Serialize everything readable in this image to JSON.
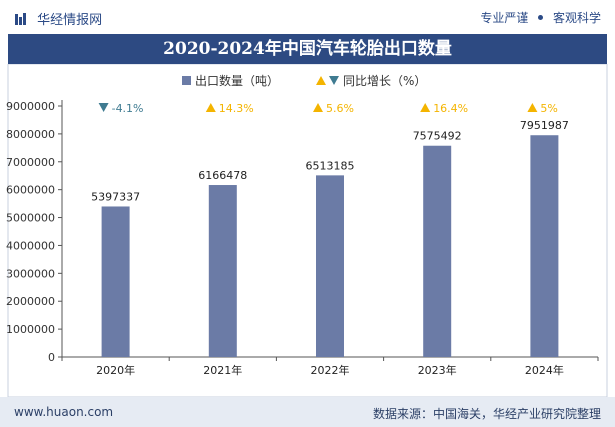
{
  "header": {
    "brand": "华经情报网",
    "tagline_left": "专业严谨",
    "tagline_right": "客观科学"
  },
  "title": "2020-2024年中国汽车轮胎出口数量",
  "footer": {
    "url": "www.huaon.com",
    "source": "数据来源：中国海关，华经产业研究院整理"
  },
  "colors": {
    "bar": "#6b7ba6",
    "title_bg": "#2d4a82",
    "up": "#f4b400",
    "down": "#3f7b91",
    "footer_bg": "#e6ebf3"
  },
  "chart_data": {
    "type": "bar",
    "categories": [
      "2020年",
      "2021年",
      "2022年",
      "2023年",
      "2024年"
    ],
    "series": [
      {
        "name": "出口数量（吨）",
        "values": [
          5397337,
          6166478,
          6513185,
          7575492,
          7951987
        ]
      }
    ],
    "growth": {
      "name": "同比增长（%）",
      "labels": [
        "-4.1%",
        "14.3%",
        "5.6%",
        "16.4%",
        "5%"
      ],
      "direction": [
        "down",
        "up",
        "up",
        "up",
        "up"
      ]
    },
    "ylim": [
      0,
      9000000
    ],
    "yticks": [
      "0",
      "1000000",
      "2000000",
      "3000000",
      "4000000",
      "5000000",
      "6000000",
      "7000000",
      "8000000",
      "9000000"
    ],
    "legend_placement": "top-center",
    "grid": false
  }
}
